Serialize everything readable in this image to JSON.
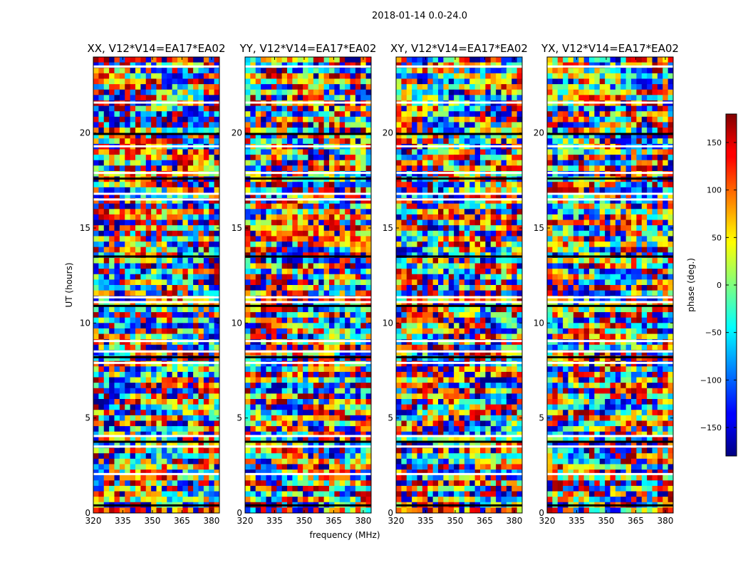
{
  "figure_title": "2018-01-14 0.0-24.0",
  "xlabel": "frequency (MHz)",
  "ylabel": "UT (hours)",
  "colorbar": {
    "label": "phase (deg.)",
    "range": [
      -180,
      180
    ],
    "ticks": [
      "150",
      "100",
      "50",
      "0",
      "−50",
      "−100",
      "−150"
    ],
    "tick_values": [
      150,
      100,
      50,
      0,
      -50,
      -100,
      -150
    ],
    "colormap": "jet"
  },
  "chart_data": [
    {
      "type": "heatmap",
      "title": "XX, V12*V14=EA17*EA02",
      "x_range": [
        320,
        384
      ],
      "y_range": [
        0,
        24
      ],
      "xticks": [
        "320",
        "335",
        "350",
        "365",
        "380"
      ],
      "yticks": [
        "0",
        "5",
        "10",
        "15",
        "20"
      ],
      "xlabel": "",
      "ylabel": "UT (hours)"
    },
    {
      "type": "heatmap",
      "title": "YY, V12*V14=EA17*EA02",
      "x_range": [
        320,
        384
      ],
      "y_range": [
        0,
        24
      ],
      "xticks": [
        "320",
        "335",
        "350",
        "365",
        "380"
      ],
      "yticks": [
        "0",
        "5",
        "10",
        "15",
        "20"
      ],
      "xlabel": "frequency (MHz)",
      "ylabel": ""
    },
    {
      "type": "heatmap",
      "title": "XY, V12*V14=EA17*EA02",
      "x_range": [
        320,
        384
      ],
      "y_range": [
        0,
        24
      ],
      "xticks": [
        "320",
        "335",
        "350",
        "365",
        "380"
      ],
      "yticks": [
        "0",
        "5",
        "10",
        "15",
        "20"
      ],
      "xlabel": "",
      "ylabel": ""
    },
    {
      "type": "heatmap",
      "title": "YX, V12*V14=EA17*EA02",
      "x_range": [
        320,
        384
      ],
      "y_range": [
        0,
        24
      ],
      "xticks": [
        "320",
        "335",
        "350",
        "365",
        "380"
      ],
      "yticks": [
        "0",
        "5",
        "10",
        "15",
        "20"
      ],
      "xlabel": "",
      "ylabel": ""
    }
  ],
  "flagged_gaps_ut": [
    0.4,
    2.05,
    3.5,
    3.75,
    4.05,
    7.9,
    8.2,
    8.5,
    9.05,
    10.9,
    11.1,
    11.35,
    13.5,
    16.5,
    16.8,
    17.6,
    17.9,
    19.3,
    19.95,
    21.6,
    23.5
  ]
}
